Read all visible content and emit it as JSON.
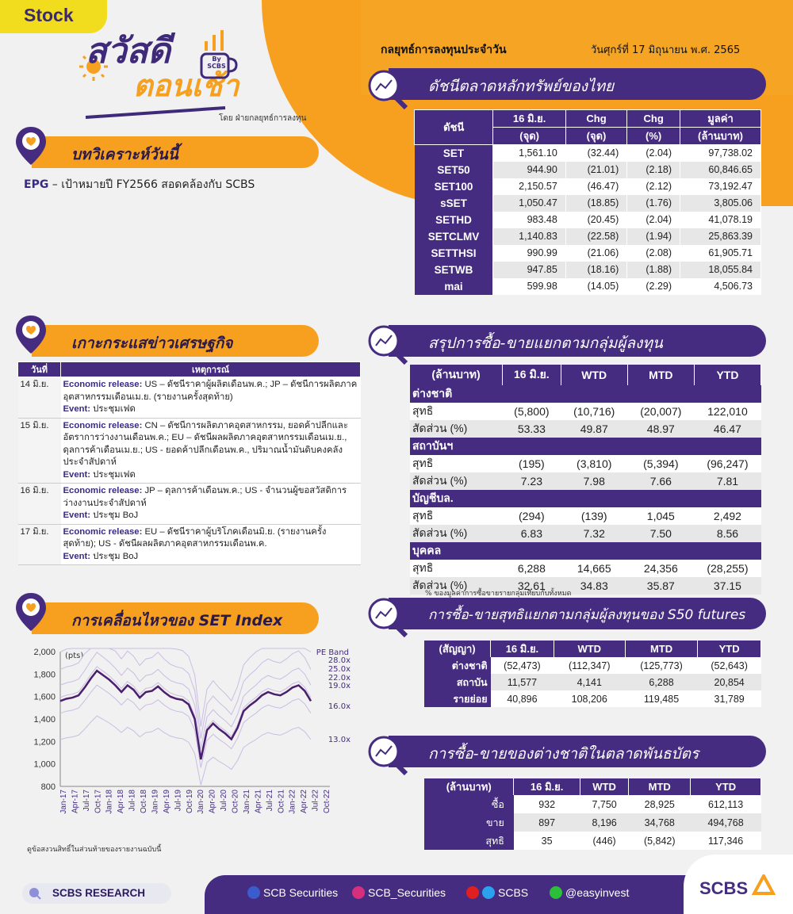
{
  "tag": "Stock",
  "logo": {
    "line1": "สวัสดี",
    "line2": "ตอนเช้า",
    "by": "By SCBS"
  },
  "byline": "โดย ฝ่ายกลยุทธ์การลงทุน",
  "header": {
    "title": "กลยุทธ์การลงทุนประจำวัน",
    "date": "วันศุกร์ที่ 17 มิถุนายน พ.ศ. 2565"
  },
  "sections": {
    "analysis": "บทวิเคราะห์วันนี้",
    "news": "เกาะกระแสข่าวเศรษฐกิจ",
    "set_move": "การเคลื่อนไหวของ SET Index",
    "index": "ดัชนีตลาดหลักทรัพย์ของไทย",
    "investor": "สรุปการซื้อ-ขายแยกตามกลุ่มผู้ลงทุน",
    "futures": "การซื้อ-ขายสุทธิแยกตามกลุ่มผู้ลงทุนของ S50 futures",
    "bond": "การซื้อ-ขายของต่างชาติในตลาดพันธบัตร"
  },
  "analysis": {
    "ticker": "EPG",
    "text": " – เป้าหมายปี FY2566 สอดคล้องกับ SCBS"
  },
  "index_table": {
    "headers": [
      "ดัชนี",
      "16 มิ.ย.",
      "Chg",
      "Chg",
      "มูลค่า"
    ],
    "units": [
      "(จุด)",
      "(จุด)",
      "(%)",
      "(ล้านบาท)"
    ],
    "rows": [
      [
        "SET",
        "1,561.10",
        "(32.44)",
        "(2.04)",
        "97,738.02"
      ],
      [
        "SET50",
        "944.90",
        "(21.01)",
        "(2.18)",
        "60,846.65"
      ],
      [
        "SET100",
        "2,150.57",
        "(46.47)",
        "(2.12)",
        "73,192.47"
      ],
      [
        "sSET",
        "1,050.47",
        "(18.85)",
        "(1.76)",
        "3,805.06"
      ],
      [
        "SETHD",
        "983.48",
        "(20.45)",
        "(2.04)",
        "41,078.19"
      ],
      [
        "SETCLMV",
        "1,140.83",
        "(22.58)",
        "(1.94)",
        "25,863.39"
      ],
      [
        "SETTHSI",
        "990.99",
        "(21.06)",
        "(2.08)",
        "61,905.71"
      ],
      [
        "SETWB",
        "947.85",
        "(18.16)",
        "(1.88)",
        "18,055.84"
      ],
      [
        "mai",
        "599.98",
        "(14.05)",
        "(2.29)",
        "4,506.73"
      ]
    ]
  },
  "investor_table": {
    "headers": [
      "(ล้านบาท)",
      "16 มิ.ย.",
      "WTD",
      "MTD",
      "YTD"
    ],
    "groups": [
      {
        "name": "ต่างชาติ",
        "net": [
          "สุทธิ",
          "(5,800)",
          "(10,716)",
          "(20,007)",
          "122,010"
        ],
        "ratio": [
          "สัดส่วน (%)",
          "53.33",
          "49.87",
          "48.97",
          "46.47"
        ]
      },
      {
        "name": "สถาบันฯ",
        "net": [
          "สุทธิ",
          "(195)",
          "(3,810)",
          "(5,394)",
          "(96,247)"
        ],
        "ratio": [
          "สัดส่วน (%)",
          "7.23",
          "7.98",
          "7.66",
          "7.81"
        ]
      },
      {
        "name": "บัญชีบล.",
        "net": [
          "สุทธิ",
          "(294)",
          "(139)",
          "1,045",
          "2,492"
        ],
        "ratio": [
          "สัดส่วน (%)",
          "6.83",
          "7.32",
          "7.50",
          "8.56"
        ]
      },
      {
        "name": "บุคคล",
        "net": [
          "สุทธิ",
          "6,288",
          "14,665",
          "24,356",
          "(28,255)"
        ],
        "ratio": [
          "สัดส่วน (%)",
          "32.61",
          "34.83",
          "35.87",
          "37.15"
        ]
      }
    ],
    "note": "% ของมูลค่าการซื้อขายรายกลุ่มเทียบกับทั้งหมด"
  },
  "futures_table": {
    "headers": [
      "(สัญญา)",
      "16 มิ.ย.",
      "WTD",
      "MTD",
      "YTD"
    ],
    "rows": [
      [
        "ต่างชาติ",
        "(52,473)",
        "(112,347)",
        "(125,773)",
        "(52,643)"
      ],
      [
        "สถาบัน",
        "11,577",
        "4,141",
        "6,288",
        "20,854"
      ],
      [
        "รายย่อย",
        "40,896",
        "108,206",
        "119,485",
        "31,789"
      ]
    ]
  },
  "bond_table": {
    "headers": [
      "(ล้านบาท)",
      "16 มิ.ย.",
      "WTD",
      "MTD",
      "YTD"
    ],
    "rows": [
      [
        "ซื้อ",
        "932",
        "7,750",
        "28,925",
        "612,113"
      ],
      [
        "ขาย",
        "897",
        "8,196",
        "34,768",
        "494,768"
      ],
      [
        "สุทธิ",
        "35",
        "(446)",
        "(5,842)",
        "117,346"
      ]
    ]
  },
  "news_table": {
    "headers": [
      "วันที่",
      "เหตุการณ์"
    ],
    "rows": [
      {
        "date": "14 มิ.ย.",
        "lead": "Economic release:",
        "text": " US – ดัชนีราคาผู้ผลิตเดือนพ.ค.; JP – ดัชนีการผลิตภาคอุตสาหกรรมเดือนเม.ย. (รายงานครั้งสุดท้าย)",
        "ev": "Event:",
        "evtext": " ประชุมเฟด"
      },
      {
        "date": "15 มิ.ย.",
        "lead": "Economic release:",
        "text": " CN – ดัชนีการผลิตภาคอุตสาหกรรม, ยอดค้าปลีกและอัตราการว่างงานเดือนพ.ค.; EU – ดัชนีผลผลิตภาคอุตสาหกรรมเดือนเม.ย., ดุลการค้าเดือนเม.ย.; US - ยอดค้าปลีกเดือนพ.ค., ปริมาณน้ำมันดิบคงคลังประจำสัปดาห์",
        "ev": "Event:",
        "evtext": " ประชุมเฟด"
      },
      {
        "date": "16 มิ.ย.",
        "lead": "Economic release:",
        "text": " JP – ดุลการค้าเดือนพ.ค.; US - จำนวนผู้ขอสวัสดิการว่างงานประจำสัปดาห์",
        "ev": "Event:",
        "evtext": " ประชุม BoJ"
      },
      {
        "date": "17 มิ.ย.",
        "lead": "Economic release:",
        "text": " EU – ดัชนีราคาผู้บริโภคเดือนมิ.ย. (รายงานครั้งสุดท้าย); US - ดัชนีผลผลิตภาคอุตสาหกรรมเดือนพ.ค.",
        "ev": "Event:",
        "evtext": " ประชุม BoJ"
      }
    ]
  },
  "chart_data": {
    "type": "line",
    "ylabel": "(pts)",
    "ylim": [
      800,
      2000
    ],
    "yticks": [
      "2,000",
      "1,800",
      "1,600",
      "1,400",
      "1,200",
      "1,000",
      "800"
    ],
    "xticks": [
      "Jan-17",
      "Apr-17",
      "Jul-17",
      "Oct-17",
      "Jan-18",
      "Apr-18",
      "Jul-18",
      "Oct-18",
      "Jan-19",
      "Apr-19",
      "Jul-19",
      "Oct-19",
      "Jan-20",
      "Apr-20",
      "Jul-20",
      "Oct-20",
      "Jan-21",
      "Apr-21",
      "Jul-21",
      "Oct-21",
      "Jan-22",
      "Apr-22",
      "Jul-22",
      "Oct-22"
    ],
    "series": [
      {
        "values": [
          1560,
          1580,
          1590,
          1610,
          1680,
          1760,
          1830,
          1790,
          1750,
          1700,
          1640,
          1700,
          1660,
          1590,
          1640,
          1650,
          1690,
          1640,
          1600,
          1580,
          1570,
          1530,
          1400,
          1040,
          1300,
          1360,
          1310,
          1270,
          1220,
          1320,
          1470,
          1520,
          1560,
          1610,
          1640,
          1620,
          1610,
          1640,
          1680,
          1700,
          1650,
          1560
        ]
      }
    ],
    "bands_label": "PE Band",
    "bands": [
      {
        "label": "28.0x"
      },
      {
        "label": "25.0x"
      },
      {
        "label": "22.0x"
      },
      {
        "label": "19.0x"
      },
      {
        "label": "16.0x"
      },
      {
        "label": "13.0x"
      }
    ],
    "note": "ดูข้อสงวนสิทธิ์ในส่วนท้ายของรายงานฉบับนี้"
  },
  "footer": {
    "research": "SCBS RESEARCH",
    "fb": "SCB Securities",
    "ig": "SCB_Securities",
    "yt": "SCBS",
    "line": "@easyinvest",
    "logo": "SCBS"
  },
  "colors": {
    "purple": "#452c80",
    "orange": "#f7a020",
    "yellow": "#f2dc1e",
    "line": "#4a1f6e"
  }
}
